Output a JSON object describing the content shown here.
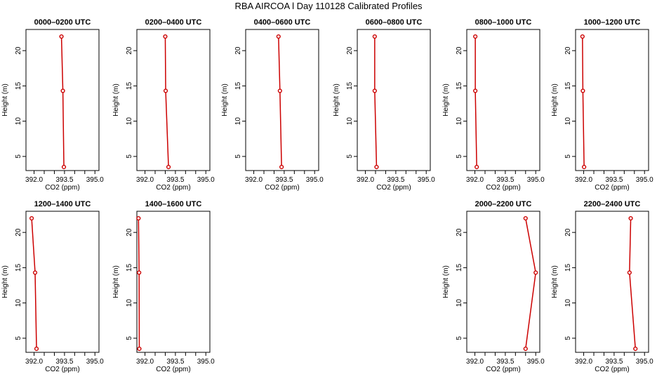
{
  "title": "RBA AIRCOA l  Day 110128  Calibrated Profiles",
  "colors": {
    "line": "#cc0000",
    "frame": "#000000"
  },
  "chart_data": [
    {
      "type": "line",
      "title": "0000–0200 UTC",
      "xlabel": "CO2 (ppm)",
      "ylabel": "Height (m)",
      "xlim": [
        391.6,
        395.2
      ],
      "ylim": [
        3,
        23
      ],
      "xticks": [
        "392.0",
        "393.5",
        "395.0"
      ],
      "yticks": [
        "5",
        "10",
        "15",
        "20"
      ],
      "x": [
        393.35,
        393.42,
        393.47
      ],
      "y": [
        22,
        14.3,
        3.5
      ]
    },
    {
      "type": "line",
      "title": "0200–0400 UTC",
      "xlabel": "CO2 (ppm)",
      "ylabel": "Height (m)",
      "xlim": [
        391.6,
        395.2
      ],
      "ylim": [
        3,
        23
      ],
      "xticks": [
        "392.0",
        "393.5",
        "395.0"
      ],
      "yticks": [
        "5",
        "10",
        "15",
        "20"
      ],
      "x": [
        393.0,
        393.02,
        393.16
      ],
      "y": [
        22,
        14.3,
        3.5
      ]
    },
    {
      "type": "line",
      "title": "0400–0600 UTC",
      "xlabel": "CO2 (ppm)",
      "ylabel": "Height (m)",
      "xlim": [
        391.6,
        395.2
      ],
      "ylim": [
        3,
        23
      ],
      "xticks": [
        "392.0",
        "393.5",
        "395.0"
      ],
      "yticks": [
        "5",
        "10",
        "15",
        "20"
      ],
      "x": [
        393.22,
        393.29,
        393.37
      ],
      "y": [
        22,
        14.3,
        3.5
      ]
    },
    {
      "type": "line",
      "title": "0600–0800 UTC",
      "xlabel": "CO2 (ppm)",
      "ylabel": "Height (m)",
      "xlim": [
        391.6,
        395.2
      ],
      "ylim": [
        3,
        23
      ],
      "xticks": [
        "392.0",
        "393.5",
        "395.0"
      ],
      "yticks": [
        "5",
        "10",
        "15",
        "20"
      ],
      "x": [
        392.46,
        392.46,
        392.55
      ],
      "y": [
        22,
        14.3,
        3.5
      ]
    },
    {
      "type": "line",
      "title": "0800–1000 UTC",
      "xlabel": "CO2 (ppm)",
      "ylabel": "Height (m)",
      "xlim": [
        391.6,
        395.2
      ],
      "ylim": [
        3,
        23
      ],
      "xticks": [
        "392.0",
        "393.5",
        "395.0"
      ],
      "yticks": [
        "5",
        "10",
        "15",
        "20"
      ],
      "x": [
        392.02,
        392.02,
        392.09
      ],
      "y": [
        22,
        14.3,
        3.5
      ]
    },
    {
      "type": "line",
      "title": "1000–1200 UTC",
      "xlabel": "CO2 (ppm)",
      "ylabel": "Height (m)",
      "xlim": [
        391.6,
        395.2
      ],
      "ylim": [
        3,
        23
      ],
      "xticks": [
        "392.0",
        "393.5",
        "395.0"
      ],
      "yticks": [
        "5",
        "10",
        "15",
        "20"
      ],
      "x": [
        391.94,
        391.96,
        392.02
      ],
      "y": [
        22,
        14.3,
        3.5
      ]
    },
    {
      "type": "line",
      "title": "1200–1400 UTC",
      "xlabel": "CO2 (ppm)",
      "ylabel": "Height (m)",
      "xlim": [
        391.6,
        395.2
      ],
      "ylim": [
        3,
        23
      ],
      "xticks": [
        "392.0",
        "393.5",
        "395.0"
      ],
      "yticks": [
        "5",
        "10",
        "15",
        "20"
      ],
      "x": [
        391.88,
        392.05,
        392.12
      ],
      "y": [
        22,
        14.3,
        3.5
      ]
    },
    {
      "type": "line",
      "title": "1400–1600 UTC",
      "xlabel": "CO2 (ppm)",
      "ylabel": "Height (m)",
      "xlim": [
        391.6,
        395.2
      ],
      "ylim": [
        3,
        23
      ],
      "xticks": [
        "392.0",
        "393.5",
        "395.0"
      ],
      "yticks": [
        "5",
        "10",
        "15",
        "20"
      ],
      "x": [
        391.68,
        391.71,
        391.72
      ],
      "y": [
        22,
        14.3,
        3.5
      ]
    },
    {
      "type": "line",
      "title": "2000–2200 UTC",
      "xlabel": "CO2 (ppm)",
      "ylabel": "Height (m)",
      "xlim": [
        391.6,
        395.2
      ],
      "ylim": [
        3,
        23
      ],
      "xticks": [
        "392.0",
        "393.5",
        "395.0"
      ],
      "yticks": [
        "5",
        "10",
        "15",
        "20"
      ],
      "x": [
        394.5,
        395.0,
        394.5
      ],
      "y": [
        22,
        14.3,
        3.5
      ]
    },
    {
      "type": "line",
      "title": "2200–2400 UTC",
      "xlabel": "CO2 (ppm)",
      "ylabel": "Height (m)",
      "xlim": [
        391.6,
        395.2
      ],
      "ylim": [
        3,
        23
      ],
      "xticks": [
        "392.0",
        "393.5",
        "395.0"
      ],
      "yticks": [
        "5",
        "10",
        "15",
        "20"
      ],
      "x": [
        394.32,
        394.26,
        394.55
      ],
      "y": [
        22,
        14.3,
        3.5
      ]
    }
  ]
}
